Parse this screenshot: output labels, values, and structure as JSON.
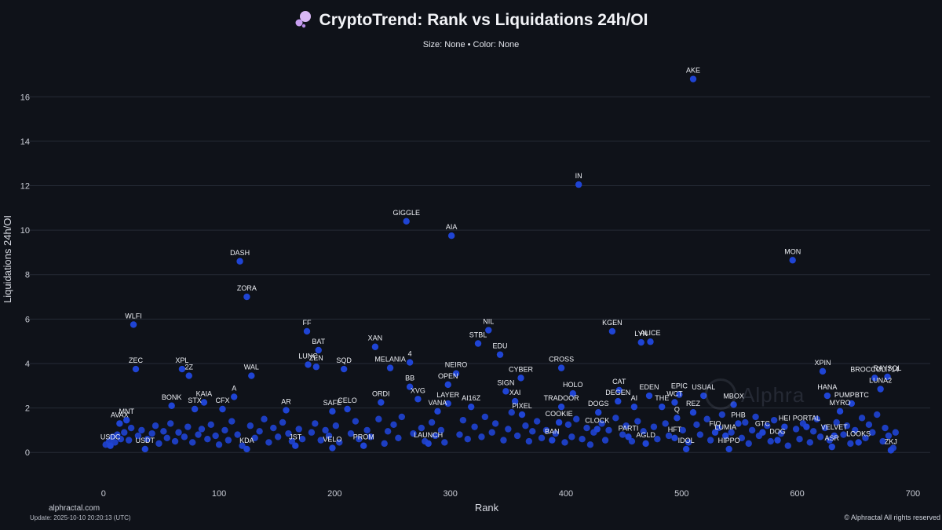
{
  "header": {
    "title": "CryptoTrend: Rank vs Liquidations 24h/OI",
    "subtitle": "Size: None • Color: None"
  },
  "footer": {
    "brand": "alphractal.com",
    "update": "Update: 2025-10-10 20:20:13 (UTC)",
    "copyright": "© Alphractal All rights reserved",
    "watermark": "Alphra"
  },
  "colors": {
    "background": "#0f1219",
    "grid": "#262b36",
    "point": "#1f44d4",
    "text": "#e6e8ee"
  },
  "chart_data": {
    "type": "scatter",
    "title": "CryptoTrend: Rank vs Liquidations 24h/OI",
    "xlabel": "Rank",
    "ylabel": "Liquidations 24h/OI",
    "xlim": [
      -65,
      715
    ],
    "ylim": [
      -1.3,
      17.6
    ],
    "xticks": [
      0,
      100,
      200,
      300,
      400,
      500,
      600,
      700
    ],
    "yticks": [
      0,
      2,
      4,
      6,
      8,
      10,
      12,
      14,
      16
    ],
    "grid": "horizontal",
    "labeled_points": [
      {
        "label": "AKE",
        "x": 510,
        "y": 16.8
      },
      {
        "label": "IN",
        "x": 411,
        "y": 12.05
      },
      {
        "label": "GIGGLE",
        "x": 262,
        "y": 10.4
      },
      {
        "label": "AIA",
        "x": 301,
        "y": 9.75
      },
      {
        "label": "MON",
        "x": 596,
        "y": 8.65
      },
      {
        "label": "DASH",
        "x": 118,
        "y": 8.6
      },
      {
        "label": "ZORA",
        "x": 124,
        "y": 7.0
      },
      {
        "label": "WLFI",
        "x": 26,
        "y": 5.75
      },
      {
        "label": "NIL",
        "x": 333,
        "y": 5.5
      },
      {
        "label": "FF",
        "x": 176,
        "y": 5.45
      },
      {
        "label": "KGEN",
        "x": 440,
        "y": 5.45
      },
      {
        "label": "LYN",
        "x": 465,
        "y": 4.95
      },
      {
        "label": "ALICE",
        "x": 473,
        "y": 4.98
      },
      {
        "label": "STBL",
        "x": 324,
        "y": 4.9
      },
      {
        "label": "BAT",
        "x": 186,
        "y": 4.6
      },
      {
        "label": "XAN",
        "x": 235,
        "y": 4.75
      },
      {
        "label": "EDU",
        "x": 343,
        "y": 4.4
      },
      {
        "label": "4",
        "x": 265,
        "y": 4.05
      },
      {
        "label": "LUNC",
        "x": 177,
        "y": 3.95
      },
      {
        "label": "ZEN",
        "x": 184,
        "y": 3.85
      },
      {
        "label": "MELANIA",
        "x": 248,
        "y": 3.8
      },
      {
        "label": "CROSS",
        "x": 396,
        "y": 3.8
      },
      {
        "label": "SQD",
        "x": 208,
        "y": 3.75
      },
      {
        "label": "ZEC",
        "x": 28,
        "y": 3.75
      },
      {
        "label": "XPL",
        "x": 68,
        "y": 3.75
      },
      {
        "label": "XPIN",
        "x": 622,
        "y": 3.65
      },
      {
        "label": "2Z",
        "x": 74,
        "y": 3.45
      },
      {
        "label": "WAL",
        "x": 128,
        "y": 3.45
      },
      {
        "label": "NEIRO",
        "x": 305,
        "y": 3.55
      },
      {
        "label": "CYBER",
        "x": 361,
        "y": 3.35
      },
      {
        "label": "BROCCOLI714",
        "x": 667,
        "y": 3.35
      },
      {
        "label": "RAYSOL",
        "x": 678,
        "y": 3.4
      },
      {
        "label": "OPEN",
        "x": 298,
        "y": 3.05
      },
      {
        "label": "BB",
        "x": 265,
        "y": 2.95
      },
      {
        "label": "LUNA2",
        "x": 672,
        "y": 2.85
      },
      {
        "label": "HOLO",
        "x": 406,
        "y": 2.65
      },
      {
        "label": "CAT",
        "x": 446,
        "y": 2.8
      },
      {
        "label": "EDEN",
        "x": 472,
        "y": 2.55
      },
      {
        "label": "EPIC",
        "x": 498,
        "y": 2.6
      },
      {
        "label": "USUAL",
        "x": 519,
        "y": 2.55
      },
      {
        "label": "HANA",
        "x": 626,
        "y": 2.55
      },
      {
        "label": "XVG",
        "x": 272,
        "y": 2.4
      },
      {
        "label": "A",
        "x": 113,
        "y": 2.5
      },
      {
        "label": "KAIA",
        "x": 87,
        "y": 2.25
      },
      {
        "label": "BONK",
        "x": 59,
        "y": 2.1
      },
      {
        "label": "ORDI",
        "x": 240,
        "y": 2.25
      },
      {
        "label": "LAYER",
        "x": 298,
        "y": 2.2
      },
      {
        "label": "SIGN",
        "x": 348,
        "y": 2.75
      },
      {
        "label": "XAI",
        "x": 356,
        "y": 2.3
      },
      {
        "label": "WCT",
        "x": 494,
        "y": 2.25
      },
      {
        "label": "MBOX",
        "x": 545,
        "y": 2.15
      },
      {
        "label": "PUMPBTC",
        "x": 647,
        "y": 2.2
      },
      {
        "label": "STX",
        "x": 79,
        "y": 1.95
      },
      {
        "label": "CFX",
        "x": 103,
        "y": 1.95
      },
      {
        "label": "CELO",
        "x": 211,
        "y": 1.95
      },
      {
        "label": "TRADOOR",
        "x": 396,
        "y": 2.05
      },
      {
        "label": "DOGS",
        "x": 428,
        "y": 1.8
      },
      {
        "label": "REZ",
        "x": 510,
        "y": 1.8
      },
      {
        "label": "SAFE",
        "x": 198,
        "y": 1.85
      },
      {
        "label": "AR",
        "x": 158,
        "y": 1.9
      },
      {
        "label": "VANA",
        "x": 289,
        "y": 1.85
      },
      {
        "label": "PIXEL",
        "x": 362,
        "y": 1.7
      },
      {
        "label": "Q",
        "x": 496,
        "y": 1.55
      },
      {
        "label": "MNT",
        "x": 20,
        "y": 1.45
      },
      {
        "label": "PHB",
        "x": 549,
        "y": 1.3
      },
      {
        "label": "AVAX",
        "x": 14,
        "y": 1.3
      },
      {
        "label": "HFT",
        "x": 494,
        "y": 0.65
      },
      {
        "label": "IDOL",
        "x": 504,
        "y": 0.15
      },
      {
        "label": "HIPPO",
        "x": 541,
        "y": 0.15
      },
      {
        "label": "PARTI",
        "x": 454,
        "y": 0.7
      },
      {
        "label": "AGLD",
        "x": 469,
        "y": 0.4
      },
      {
        "label": "USDC",
        "x": 6,
        "y": 0.3
      },
      {
        "label": "USDT",
        "x": 36,
        "y": 0.15
      },
      {
        "label": "JST",
        "x": 166,
        "y": 0.3
      },
      {
        "label": "VELO",
        "x": 198,
        "y": 0.2
      },
      {
        "label": "PROM",
        "x": 225,
        "y": 0.3
      },
      {
        "label": "KDA",
        "x": 124,
        "y": 0.15
      },
      {
        "label": "LAUNCH",
        "x": 281,
        "y": 0.4
      },
      {
        "label": "BAN",
        "x": 388,
        "y": 0.55
      },
      {
        "label": "LOOKS",
        "x": 653,
        "y": 0.45
      },
      {
        "label": "ASR",
        "x": 630,
        "y": 0.25
      },
      {
        "label": "ZKJ",
        "x": 681,
        "y": 0.1
      },
      {
        "label": "FIO",
        "x": 529,
        "y": 0.9
      },
      {
        "label": "LUMIA",
        "x": 538,
        "y": 0.75
      },
      {
        "label": "GTC",
        "x": 570,
        "y": 0.9
      },
      {
        "label": "HEI",
        "x": 589,
        "y": 1.15
      },
      {
        "label": "PORTAL",
        "x": 608,
        "y": 1.15
      },
      {
        "label": "VELVET",
        "x": 632,
        "y": 0.75
      },
      {
        "label": "DOG",
        "x": 583,
        "y": 0.55
      },
      {
        "label": "MYRO",
        "x": 637,
        "y": 1.85
      },
      {
        "label": "COOKIE",
        "x": 394,
        "y": 1.35
      },
      {
        "label": "CLOCK",
        "x": 427,
        "y": 1.05
      },
      {
        "label": "DEGEN",
        "x": 445,
        "y": 2.3
      },
      {
        "label": "AI",
        "x": 459,
        "y": 2.05
      },
      {
        "label": "THE",
        "x": 483,
        "y": 2.05
      },
      {
        "label": "AI16Z",
        "x": 318,
        "y": 2.05
      }
    ],
    "cluster_points": [
      {
        "x": 2,
        "y": 0.35
      },
      {
        "x": 5,
        "y": 0.5
      },
      {
        "x": 8,
        "y": 0.7
      },
      {
        "x": 10,
        "y": 0.45
      },
      {
        "x": 12,
        "y": 0.8
      },
      {
        "x": 15,
        "y": 0.6
      },
      {
        "x": 18,
        "y": 0.9
      },
      {
        "x": 22,
        "y": 0.55
      },
      {
        "x": 24,
        "y": 1.1
      },
      {
        "x": 30,
        "y": 0.75
      },
      {
        "x": 33,
        "y": 1.0
      },
      {
        "x": 38,
        "y": 0.6
      },
      {
        "x": 42,
        "y": 0.85
      },
      {
        "x": 45,
        "y": 1.2
      },
      {
        "x": 48,
        "y": 0.4
      },
      {
        "x": 52,
        "y": 0.95
      },
      {
        "x": 55,
        "y": 0.65
      },
      {
        "x": 58,
        "y": 1.3
      },
      {
        "x": 62,
        "y": 0.5
      },
      {
        "x": 65,
        "y": 0.9
      },
      {
        "x": 70,
        "y": 0.7
      },
      {
        "x": 73,
        "y": 1.15
      },
      {
        "x": 77,
        "y": 0.45
      },
      {
        "x": 82,
        "y": 0.8
      },
      {
        "x": 85,
        "y": 1.05
      },
      {
        "x": 90,
        "y": 0.6
      },
      {
        "x": 93,
        "y": 1.25
      },
      {
        "x": 97,
        "y": 0.75
      },
      {
        "x": 100,
        "y": 0.35
      },
      {
        "x": 105,
        "y": 1.0
      },
      {
        "x": 108,
        "y": 0.55
      },
      {
        "x": 111,
        "y": 1.4
      },
      {
        "x": 116,
        "y": 0.8
      },
      {
        "x": 120,
        "y": 0.3
      },
      {
        "x": 127,
        "y": 1.2
      },
      {
        "x": 131,
        "y": 0.65
      },
      {
        "x": 135,
        "y": 0.95
      },
      {
        "x": 139,
        "y": 1.5
      },
      {
        "x": 143,
        "y": 0.45
      },
      {
        "x": 147,
        "y": 1.1
      },
      {
        "x": 151,
        "y": 0.7
      },
      {
        "x": 155,
        "y": 1.35
      },
      {
        "x": 160,
        "y": 0.85
      },
      {
        "x": 163,
        "y": 0.5
      },
      {
        "x": 169,
        "y": 1.05
      },
      {
        "x": 172,
        "y": 0.6
      },
      {
        "x": 180,
        "y": 0.9
      },
      {
        "x": 183,
        "y": 1.3
      },
      {
        "x": 188,
        "y": 0.55
      },
      {
        "x": 192,
        "y": 1.0
      },
      {
        "x": 195,
        "y": 0.75
      },
      {
        "x": 201,
        "y": 1.2
      },
      {
        "x": 204,
        "y": 0.45
      },
      {
        "x": 214,
        "y": 0.85
      },
      {
        "x": 218,
        "y": 1.4
      },
      {
        "x": 221,
        "y": 0.6
      },
      {
        "x": 228,
        "y": 1.0
      },
      {
        "x": 231,
        "y": 0.7
      },
      {
        "x": 238,
        "y": 1.5
      },
      {
        "x": 243,
        "y": 0.4
      },
      {
        "x": 246,
        "y": 0.95
      },
      {
        "x": 251,
        "y": 1.25
      },
      {
        "x": 255,
        "y": 0.65
      },
      {
        "x": 258,
        "y": 1.6
      },
      {
        "x": 268,
        "y": 0.85
      },
      {
        "x": 275,
        "y": 1.1
      },
      {
        "x": 278,
        "y": 0.5
      },
      {
        "x": 284,
        "y": 1.35
      },
      {
        "x": 287,
        "y": 0.75
      },
      {
        "x": 292,
        "y": 1.0
      },
      {
        "x": 295,
        "y": 0.45
      },
      {
        "x": 308,
        "y": 0.8
      },
      {
        "x": 311,
        "y": 1.45
      },
      {
        "x": 315,
        "y": 0.6
      },
      {
        "x": 321,
        "y": 1.15
      },
      {
        "x": 327,
        "y": 0.7
      },
      {
        "x": 330,
        "y": 1.6
      },
      {
        "x": 336,
        "y": 0.9
      },
      {
        "x": 339,
        "y": 1.3
      },
      {
        "x": 346,
        "y": 0.55
      },
      {
        "x": 350,
        "y": 1.05
      },
      {
        "x": 353,
        "y": 1.8
      },
      {
        "x": 358,
        "y": 0.75
      },
      {
        "x": 365,
        "y": 1.2
      },
      {
        "x": 368,
        "y": 0.5
      },
      {
        "x": 371,
        "y": 0.95
      },
      {
        "x": 375,
        "y": 1.4
      },
      {
        "x": 379,
        "y": 0.65
      },
      {
        "x": 383,
        "y": 1.0
      },
      {
        "x": 391,
        "y": 0.85
      },
      {
        "x": 399,
        "y": 0.45
      },
      {
        "x": 402,
        "y": 1.25
      },
      {
        "x": 405,
        "y": 0.7
      },
      {
        "x": 409,
        "y": 1.5
      },
      {
        "x": 414,
        "y": 0.6
      },
      {
        "x": 418,
        "y": 1.1
      },
      {
        "x": 421,
        "y": 0.35
      },
      {
        "x": 424,
        "y": 0.9
      },
      {
        "x": 431,
        "y": 1.3
      },
      {
        "x": 434,
        "y": 0.55
      },
      {
        "x": 437,
        "y": 1.0
      },
      {
        "x": 443,
        "y": 1.55
      },
      {
        "x": 449,
        "y": 0.8
      },
      {
        "x": 452,
        "y": 1.2
      },
      {
        "x": 457,
        "y": 0.5
      },
      {
        "x": 462,
        "y": 1.4
      },
      {
        "x": 467,
        "y": 0.95
      },
      {
        "x": 476,
        "y": 1.15
      },
      {
        "x": 479,
        "y": 0.6
      },
      {
        "x": 486,
        "y": 1.3
      },
      {
        "x": 489,
        "y": 0.75
      },
      {
        "x": 501,
        "y": 1.0
      },
      {
        "x": 506,
        "y": 0.45
      },
      {
        "x": 513,
        "y": 1.25
      },
      {
        "x": 516,
        "y": 0.8
      },
      {
        "x": 522,
        "y": 1.5
      },
      {
        "x": 525,
        "y": 0.55
      },
      {
        "x": 532,
        "y": 1.1
      },
      {
        "x": 535,
        "y": 1.7
      },
      {
        "x": 543,
        "y": 0.9
      },
      {
        "x": 552,
        "y": 0.65
      },
      {
        "x": 555,
        "y": 1.35
      },
      {
        "x": 558,
        "y": 0.4
      },
      {
        "x": 561,
        "y": 1.0
      },
      {
        "x": 564,
        "y": 1.6
      },
      {
        "x": 567,
        "y": 0.75
      },
      {
        "x": 574,
        "y": 1.2
      },
      {
        "x": 577,
        "y": 0.5
      },
      {
        "x": 580,
        "y": 1.45
      },
      {
        "x": 586,
        "y": 0.85
      },
      {
        "x": 592,
        "y": 0.3
      },
      {
        "x": 599,
        "y": 1.05
      },
      {
        "x": 602,
        "y": 0.6
      },
      {
        "x": 605,
        "y": 1.3
      },
      {
        "x": 611,
        "y": 0.45
      },
      {
        "x": 614,
        "y": 0.95
      },
      {
        "x": 617,
        "y": 1.5
      },
      {
        "x": 620,
        "y": 0.7
      },
      {
        "x": 624,
        "y": 1.1
      },
      {
        "x": 628,
        "y": 0.55
      },
      {
        "x": 634,
        "y": 1.35
      },
      {
        "x": 640,
        "y": 0.8
      },
      {
        "x": 643,
        "y": 1.2
      },
      {
        "x": 646,
        "y": 0.4
      },
      {
        "x": 650,
        "y": 1.0
      },
      {
        "x": 656,
        "y": 1.55
      },
      {
        "x": 659,
        "y": 0.65
      },
      {
        "x": 662,
        "y": 1.25
      },
      {
        "x": 665,
        "y": 0.9
      },
      {
        "x": 669,
        "y": 1.7
      },
      {
        "x": 674,
        "y": 0.5
      },
      {
        "x": 676,
        "y": 1.1
      },
      {
        "x": 679,
        "y": 0.75
      },
      {
        "x": 683,
        "y": 0.2
      },
      {
        "x": 685,
        "y": 0.9
      }
    ]
  }
}
